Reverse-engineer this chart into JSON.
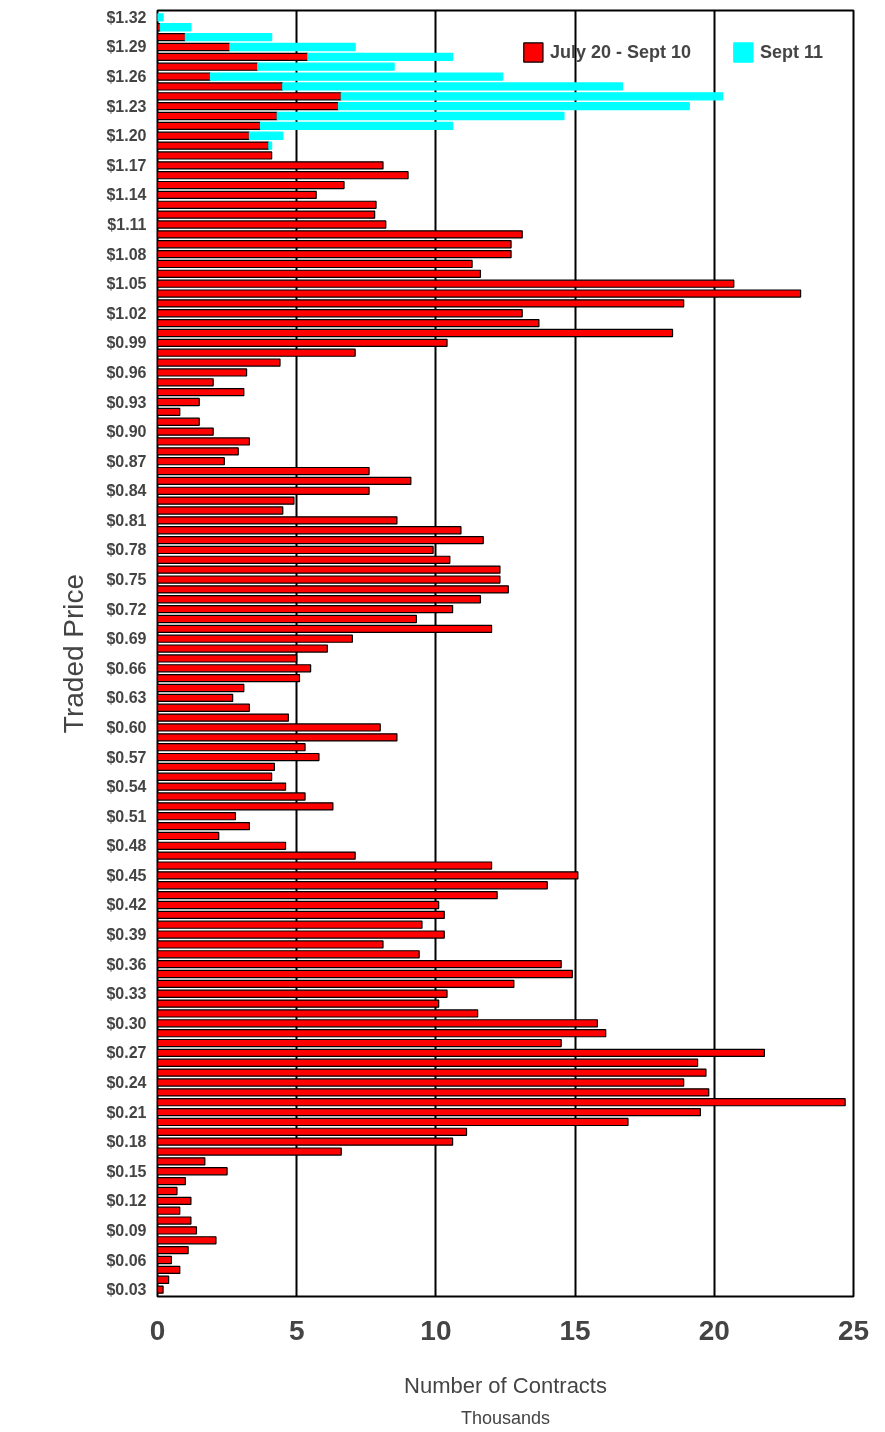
{
  "chart_data": {
    "type": "bar",
    "orientation": "horizontal",
    "stacked": true,
    "ylabel": "Traded Price",
    "xlabel": "Number of Contracts",
    "annotations": [
      "Thousands"
    ],
    "categories": [
      "$1.32",
      null,
      null,
      "$1.29",
      null,
      null,
      "$1.26",
      null,
      null,
      "$1.23",
      null,
      null,
      "$1.20",
      null,
      null,
      "$1.17",
      null,
      null,
      "$1.14",
      null,
      null,
      "$1.11",
      null,
      null,
      "$1.08",
      null,
      null,
      "$1.05",
      null,
      null,
      "$1.02",
      null,
      null,
      "$0.99",
      null,
      null,
      "$0.96",
      null,
      null,
      "$0.93",
      null,
      null,
      "$0.90",
      null,
      null,
      "$0.87",
      null,
      null,
      "$0.84",
      null,
      null,
      "$0.81",
      null,
      null,
      "$0.78",
      null,
      null,
      "$0.75",
      null,
      null,
      "$0.72",
      null,
      null,
      "$0.69",
      null,
      null,
      "$0.66",
      null,
      null,
      "$0.63",
      null,
      null,
      "$0.60",
      null,
      null,
      "$0.57",
      null,
      null,
      "$0.54",
      null,
      null,
      "$0.51",
      null,
      null,
      "$0.48",
      null,
      null,
      "$0.45",
      null,
      null,
      "$0.42",
      null,
      null,
      "$0.39",
      null,
      null,
      "$0.36",
      null,
      null,
      "$0.33",
      null,
      null,
      "$0.30",
      null,
      null,
      "$0.27",
      null,
      null,
      "$0.24",
      null,
      null,
      "$0.21",
      null,
      null,
      "$0.18",
      null,
      null,
      "$0.15",
      null,
      null,
      "$0.12",
      null,
      null,
      "$0.09",
      null,
      null,
      "$0.06",
      null,
      null,
      "$0.03"
    ],
    "series": [
      {
        "name": "July 20 - Sept 10",
        "color": "#ff0000",
        "values": [
          null,
          0.1,
          1.0,
          2.6,
          5.4,
          3.6,
          1.9,
          4.5,
          6.6,
          6.5,
          4.3,
          3.7,
          3.3,
          4.0,
          4.1,
          8.1,
          9.0,
          6.7,
          5.7,
          7.85,
          7.8,
          8.2,
          13.1,
          12.7,
          12.7,
          11.3,
          11.6,
          20.7,
          23.1,
          18.9,
          13.1,
          13.7,
          18.5,
          10.4,
          7.1,
          4.4,
          3.2,
          2.0,
          3.1,
          1.5,
          0.8,
          1.5,
          2.0,
          3.3,
          2.9,
          2.4,
          7.6,
          9.1,
          7.6,
          4.9,
          4.5,
          8.6,
          10.9,
          11.7,
          9.9,
          10.5,
          12.3,
          12.3,
          12.6,
          11.6,
          10.6,
          9.3,
          12.0,
          7.0,
          6.1,
          5.0,
          5.5,
          5.1,
          3.1,
          2.7,
          3.3,
          4.7,
          8.0,
          8.6,
          5.3,
          5.8,
          4.2,
          4.1,
          4.6,
          5.3,
          6.3,
          2.8,
          3.3,
          2.2,
          4.6,
          7.1,
          12.0,
          15.1,
          14.0,
          12.2,
          10.1,
          10.3,
          9.5,
          10.3,
          8.1,
          9.4,
          14.5,
          14.9,
          12.8,
          10.4,
          10.1,
          11.5,
          15.8,
          16.1,
          14.5,
          21.8,
          19.4,
          19.7,
          18.9,
          19.8,
          24.7,
          19.5,
          16.9,
          11.1,
          10.6,
          6.6,
          1.7,
          2.5,
          1.0,
          0.7,
          1.2,
          0.8,
          1.2,
          1.4,
          2.1,
          1.1,
          0.5,
          0.8,
          0.4,
          0.2
        ]
      },
      {
        "name": "Sept 11",
        "color": "#00ffff",
        "values": [
          0.2,
          1.1,
          3.1,
          4.5,
          5.2,
          4.9,
          10.5,
          12.2,
          13.7,
          12.6,
          10.3,
          6.9,
          1.2,
          0.1,
          null,
          null,
          null,
          null,
          null,
          null,
          null,
          null,
          null,
          null,
          null,
          null,
          null,
          null,
          null,
          null,
          null,
          null,
          null,
          null,
          null,
          null,
          null,
          null,
          null,
          null,
          null,
          null,
          null,
          null,
          null,
          null,
          null,
          null,
          null,
          null,
          null,
          null,
          null,
          null,
          null,
          null,
          null,
          null,
          null,
          null,
          null,
          null,
          null,
          null,
          null,
          null,
          null,
          null,
          null,
          null,
          null,
          null,
          null,
          null,
          null,
          null,
          null,
          null,
          null,
          null,
          null,
          null,
          null,
          null,
          null,
          null,
          null,
          null,
          null,
          null,
          null,
          null,
          null,
          null,
          null,
          null,
          null,
          null,
          null,
          null,
          null,
          null,
          null,
          null,
          null,
          null,
          null,
          null,
          null,
          null,
          null,
          null,
          null,
          null,
          null,
          null,
          null,
          null,
          null,
          null,
          null,
          null,
          null,
          null,
          null,
          null,
          null,
          null,
          null,
          null
        ]
      }
    ],
    "xlim": [
      0,
      25
    ],
    "xticks": [
      0,
      5,
      10,
      15,
      20,
      25
    ],
    "grid": "x",
    "legend": "top right"
  }
}
